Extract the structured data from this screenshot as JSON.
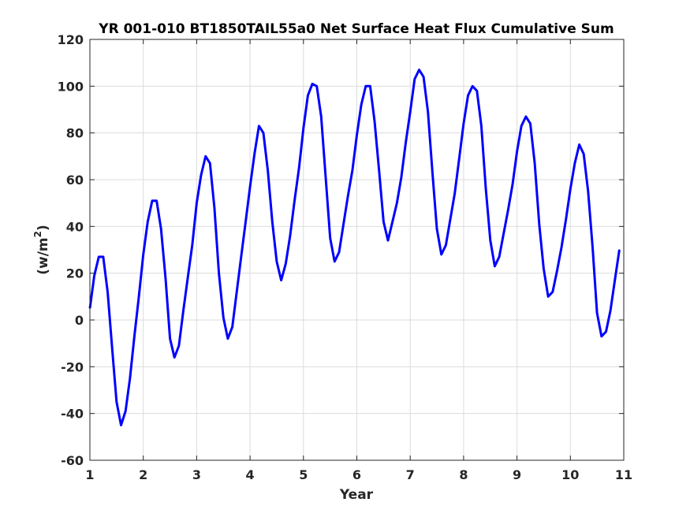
{
  "chart_data": {
    "type": "line",
    "title": "YR 001-010 BT1850TAIL55a0 Net Surface Heat Flux  Cumulative Sum",
    "xlabel": "Year",
    "ylabel_base": "(w/m",
    "ylabel_sup": "2",
    "ylabel_end": ")",
    "xlim": [
      1,
      11
    ],
    "ylim": [
      -60,
      120
    ],
    "xticks": [
      1,
      2,
      3,
      4,
      5,
      6,
      7,
      8,
      9,
      10,
      11
    ],
    "yticks": [
      -60,
      -40,
      -20,
      0,
      20,
      40,
      60,
      80,
      100,
      120
    ],
    "grid": true,
    "series": [
      {
        "color": "#0000ff",
        "x": [
          1.0,
          1.083,
          1.167,
          1.25,
          1.333,
          1.417,
          1.5,
          1.583,
          1.667,
          1.75,
          1.833,
          1.917,
          2.0,
          2.083,
          2.167,
          2.25,
          2.333,
          2.417,
          2.5,
          2.583,
          2.667,
          2.75,
          2.833,
          2.917,
          3.0,
          3.083,
          3.167,
          3.25,
          3.333,
          3.417,
          3.5,
          3.583,
          3.667,
          3.75,
          3.833,
          3.917,
          4.0,
          4.083,
          4.167,
          4.25,
          4.333,
          4.417,
          4.5,
          4.583,
          4.667,
          4.75,
          4.833,
          4.917,
          5.0,
          5.083,
          5.167,
          5.25,
          5.333,
          5.417,
          5.5,
          5.583,
          5.667,
          5.75,
          5.833,
          5.917,
          6.0,
          6.083,
          6.167,
          6.25,
          6.333,
          6.417,
          6.5,
          6.583,
          6.667,
          6.75,
          6.833,
          6.917,
          7.0,
          7.083,
          7.167,
          7.25,
          7.333,
          7.417,
          7.5,
          7.583,
          7.667,
          7.75,
          7.833,
          7.917,
          8.0,
          8.083,
          8.167,
          8.25,
          8.333,
          8.417,
          8.5,
          8.583,
          8.667,
          8.75,
          8.833,
          8.917,
          9.0,
          9.083,
          9.167,
          9.25,
          9.333,
          9.417,
          9.5,
          9.583,
          9.667,
          9.75,
          9.833,
          9.917,
          10.0,
          10.083,
          10.167,
          10.25,
          10.333,
          10.417,
          10.5,
          10.583,
          10.667,
          10.75,
          10.833,
          10.917
        ],
        "y": [
          5,
          19,
          27,
          27,
          12,
          -12,
          -35,
          -45,
          -39,
          -25,
          -7,
          10,
          28,
          42,
          51,
          51,
          39,
          18,
          -8,
          -16,
          -11,
          4,
          18,
          32,
          50,
          62,
          70,
          67,
          48,
          20,
          1,
          -8,
          -3,
          12,
          27,
          42,
          57,
          71,
          83,
          80,
          64,
          42,
          25,
          17,
          24,
          36,
          51,
          65,
          82,
          96,
          101,
          100,
          87,
          61,
          35,
          25,
          29,
          41,
          53,
          64,
          79,
          92,
          100,
          100,
          85,
          64,
          42,
          34,
          42,
          50,
          61,
          76,
          89,
          103,
          107,
          104,
          89,
          63,
          39,
          28,
          32,
          43,
          54,
          69,
          84,
          96,
          100,
          98,
          83,
          56,
          34,
          23,
          27,
          37,
          47,
          58,
          72,
          83,
          87,
          84,
          67,
          41,
          22,
          10,
          12,
          21,
          31,
          43,
          56,
          67,
          75,
          71,
          55,
          31,
          3,
          -7,
          -5,
          4,
          17,
          30
        ]
      }
    ]
  }
}
